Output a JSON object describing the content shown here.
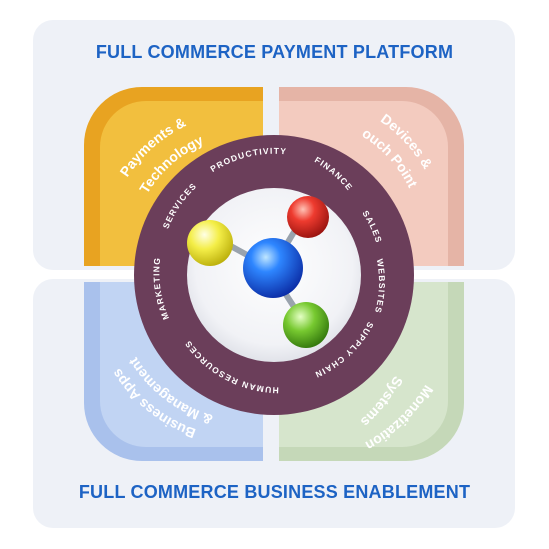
{
  "top_title": "FULL COMMERCE PAYMENT PLATFORM",
  "bottom_title": "FULL COMMERCE BUSINESS ENABLEMENT",
  "quadrants": {
    "top_left": {
      "line1": "Payments &",
      "line2": "Technology",
      "color": "#f0b62e"
    },
    "top_right": {
      "line1": "Devices &",
      "line2": "Touch Points",
      "color": "#f2c4b6"
    },
    "bottom_left": {
      "line1": "Business Apps",
      "line2": "& Management",
      "color": "#b9cdf0"
    },
    "bottom_right": {
      "line1": "Systems",
      "line2": "Monetization",
      "color": "#cfdfc4"
    }
  },
  "ring": {
    "color": "#6b3e5a",
    "labels": {
      "productivity": "PRODUCTIVITY",
      "finance": "FINANCE",
      "sales": "SALES",
      "websites": "WEBSITES",
      "supply_chain": "SUPPLY CHAIN",
      "human_resources": "HUMAN RESOURCES",
      "marketing": "MARKETING",
      "services": "SERVICES"
    }
  },
  "molecule_colors": {
    "center": "#1f5fe0",
    "red": "#e8302b",
    "yellow": "#f2ea3a",
    "green": "#6cc226"
  }
}
